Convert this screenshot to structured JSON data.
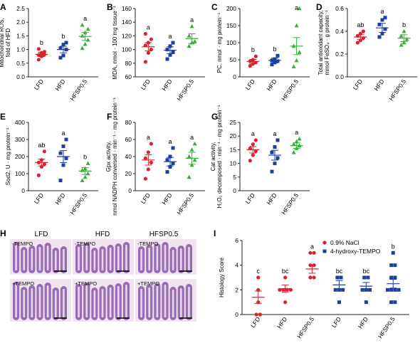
{
  "chart_data": [
    {
      "type": "scatter",
      "panel": "A",
      "ylabel": "Mitochondrial ROS, fold of HFD",
      "yticks": [
        "0.0",
        "0.5",
        "1.0",
        "1.5",
        "2.0",
        "2.5"
      ],
      "ylim": [
        0,
        2.5
      ],
      "categories": [
        "LFD",
        "HFD",
        "HFSP0.5"
      ],
      "means": [
        0.82,
        1.0,
        1.48
      ],
      "sem": [
        0.08,
        0.12,
        0.15
      ],
      "letters": [
        "b",
        "b",
        "a"
      ],
      "values": [
        [
          0.63,
          0.75,
          0.82,
          0.8,
          0.88,
          0.92,
          1.02
        ],
        [
          0.7,
          0.78,
          1.0,
          1.05,
          1.18,
          1.25
        ],
        [
          1.05,
          1.2,
          1.35,
          1.5,
          1.62,
          1.75,
          1.9
        ]
      ]
    },
    {
      "type": "scatter",
      "panel": "B",
      "ylabel": "MDA, nmol · 100 mg tissue⁻¹",
      "yticks": [
        "60",
        "80",
        "100",
        "120",
        "140",
        "160"
      ],
      "ylim": [
        60,
        160
      ],
      "categories": [
        "LFD",
        "HFD",
        "HFSP0.5"
      ],
      "means": [
        104,
        99,
        116
      ],
      "sem": [
        6,
        5,
        7
      ],
      "letters": [
        "a",
        "a",
        "a"
      ],
      "values": [
        [
          82,
          95,
          100,
          106,
          110,
          115,
          123
        ],
        [
          86,
          92,
          96,
          100,
          105,
          110
        ],
        [
          105,
          110,
          112,
          120,
          134
        ]
      ]
    },
    {
      "type": "scatter",
      "panel": "C",
      "ylabel": "PC, nmol · mg protein⁻¹",
      "yticks": [
        "0",
        "50",
        "100",
        "150",
        "200"
      ],
      "ylim": [
        0,
        200
      ],
      "categories": [
        "LFD",
        "HFD",
        "HFSP0.5"
      ],
      "means": [
        45,
        48,
        90
      ],
      "sem": [
        6,
        7,
        25
      ],
      "letters": [
        "b",
        "b",
        "a"
      ],
      "values": [
        [
          32,
          38,
          42,
          46,
          50,
          60
        ],
        [
          36,
          42,
          46,
          48,
          52,
          62
        ],
        [
          30,
          48,
          72,
          90,
          150,
          200
        ]
      ]
    },
    {
      "type": "scatter",
      "panel": "D",
      "ylabel": "Total antioxidant capacity, mmol FeSO₄ · g protein⁻¹",
      "yticks": [
        "0.0",
        "0.2",
        "0.4",
        "0.6"
      ],
      "ylim": [
        0,
        0.6
      ],
      "categories": [
        "LFD",
        "HFD",
        "HFSP0.5"
      ],
      "means": [
        0.35,
        0.43,
        0.34
      ],
      "sem": [
        0.02,
        0.04,
        0.03
      ],
      "letters": [
        "ab",
        "a",
        "b"
      ],
      "values": [
        [
          0.3,
          0.32,
          0.34,
          0.36,
          0.38,
          0.4
        ],
        [
          0.35,
          0.38,
          0.42,
          0.46,
          0.5,
          0.52
        ],
        [
          0.28,
          0.3,
          0.33,
          0.36,
          0.4
        ]
      ]
    },
    {
      "type": "scatter",
      "panel": "E",
      "ylabel": "Sod2, U · mg protein⁻¹",
      "yticks": [
        "0",
        "100",
        "200",
        "300",
        "400"
      ],
      "ylim": [
        0,
        400
      ],
      "categories": [
        "LFD",
        "HFD",
        "HFSP0.5"
      ],
      "means": [
        165,
        200,
        115
      ],
      "sem": [
        20,
        35,
        20
      ],
      "letters": [
        "ab",
        "a",
        "b"
      ],
      "values": [
        [
          90,
          140,
          155,
          165,
          180,
          230
        ],
        [
          60,
          150,
          190,
          220,
          260,
          300
        ],
        [
          60,
          80,
          100,
          120,
          130,
          160
        ]
      ]
    },
    {
      "type": "scatter",
      "panel": "F",
      "ylabel": "Gpx activity, nmol NADPH conversed · min⁻¹ · mg protein⁻¹",
      "yticks": [
        "0",
        "20",
        "40",
        "60",
        "80"
      ],
      "ylim": [
        0,
        80
      ],
      "categories": [
        "LFD",
        "HFD",
        "HFSP0.5"
      ],
      "means": [
        36,
        34,
        38
      ],
      "sem": [
        6,
        5,
        7
      ],
      "letters": [
        "a",
        "a",
        "a"
      ],
      "values": [
        [
          14,
          25,
          33,
          38,
          45,
          55
        ],
        [
          22,
          28,
          32,
          36,
          40,
          50
        ],
        [
          16,
          30,
          36,
          40,
          48,
          55
        ]
      ]
    },
    {
      "type": "scatter",
      "panel": "G",
      "ylabel": "Cat activity, H₂O₂ decomposed · min⁻¹ · mg protein⁻¹",
      "yticks": [
        "0",
        "5",
        "10",
        "15",
        "20",
        "25"
      ],
      "ylim": [
        0,
        25
      ],
      "categories": [
        "LFD",
        "HFD",
        "HFSP0.5"
      ],
      "means": [
        15,
        13,
        16.5
      ],
      "sem": [
        1.2,
        1.8,
        1
      ],
      "letters": [
        "a",
        "a",
        "a"
      ],
      "values": [
        [
          11,
          13,
          14.5,
          15.5,
          17,
          18.5
        ],
        [
          7,
          10,
          12,
          14,
          16,
          18.5
        ],
        [
          14,
          15.5,
          16.5,
          17,
          18,
          19
        ]
      ]
    },
    {
      "type": "scatter",
      "panel": "I",
      "ylabel": "Histology Score",
      "yticks": [
        "0",
        "2",
        "4",
        "6"
      ],
      "ylim": [
        0,
        6
      ],
      "categories": [
        "LFD",
        "HFD",
        "HFSP0.5",
        "LFD",
        "HFD",
        "HFSP0.5"
      ],
      "means": [
        1.4,
        2.1,
        3.7,
        2.4,
        2.3,
        2.5
      ],
      "sem": [
        0.5,
        0.3,
        0.35,
        0.35,
        0.3,
        0.35
      ],
      "letters": [
        "c",
        "bc",
        "a",
        "bc",
        "bc",
        "b"
      ],
      "series": [
        {
          "name": "0.9% NaCl",
          "groups": [
            0,
            1,
            2
          ]
        },
        {
          "name": "4-hydroxy-TEMPO",
          "groups": [
            3,
            4,
            5
          ]
        }
      ],
      "values": [
        [
          0,
          0,
          1,
          2,
          3
        ],
        [
          1,
          2,
          2,
          2,
          2,
          3
        ],
        [
          3,
          3,
          4,
          4,
          5,
          5
        ],
        [
          1,
          2,
          2,
          2,
          3,
          3
        ],
        [
          1,
          2,
          2,
          2,
          3,
          3
        ],
        [
          1,
          1,
          2,
          2,
          2,
          2,
          3,
          3,
          4,
          4,
          5
        ]
      ]
    }
  ],
  "panels": {
    "A": "A",
    "B": "B",
    "C": "C",
    "D": "D",
    "E": "E",
    "F": "F",
    "G": "G",
    "H": "H",
    "I": "I"
  },
  "histology": {
    "columns": [
      "LFD",
      "HFD",
      "HFSP0.5"
    ],
    "row_minus": "-TEMPO",
    "row_plus": "+TEMPO"
  },
  "legend": {
    "nacl": "0.9% NaCl",
    "tempo": "4-hydroxy-TEMPO"
  },
  "colors": {
    "LFD": "#d9232f",
    "HFD": "#1f3fa0",
    "HFSP": "#3aad3a",
    "NaCl": "#d9232f",
    "TEMPO": "#1f3fa0",
    "tissue_bg": "#efe4ef",
    "tissue": "#8a57a8"
  }
}
